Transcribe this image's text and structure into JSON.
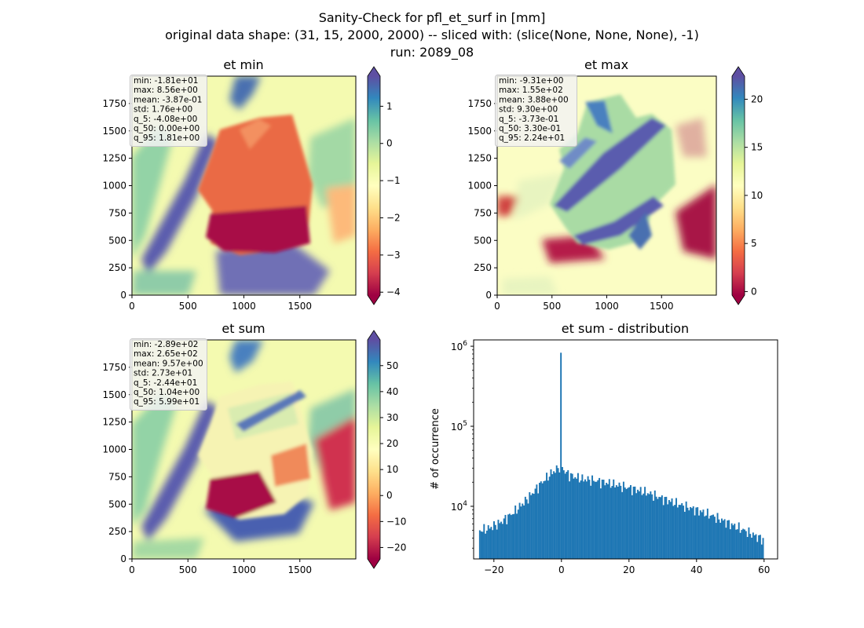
{
  "figure": {
    "title_lines": [
      "Sanity-Check for pfl_et_surf in [mm]",
      "original data shape: (31, 15, 2000, 2000) -- sliced with: (slice(None, None, None), -1)",
      "run: 2089_08"
    ]
  },
  "chart_data": [
    {
      "type": "heatmap",
      "title": "et min",
      "xticks": [
        0,
        500,
        1000,
        1500
      ],
      "yticks": [
        0,
        250,
        500,
        750,
        1000,
        1250,
        1500,
        1750
      ],
      "xlim": [
        0,
        2000
      ],
      "ylim": [
        0,
        2000
      ],
      "colormap": "Spectral",
      "color_range": [
        -4.08,
        1.81
      ],
      "colorbar_ticks": [
        "1",
        "0",
        "−1",
        "−2",
        "−3",
        "−4"
      ],
      "colorbar_tick_values": [
        1,
        0,
        -1,
        -2,
        -3,
        -4
      ],
      "stats": [
        "min: -1.81e+01",
        "max: 8.56e+00",
        "mean: -3.87e-01",
        "std: 1.76e+00",
        "q_5: -4.08e+00",
        "q_50: 0.00e+00",
        "q_95: 1.81e+00"
      ]
    },
    {
      "type": "heatmap",
      "title": "et max",
      "xticks": [
        0,
        500,
        1000,
        1500
      ],
      "yticks": [
        0,
        250,
        500,
        750,
        1000,
        1250,
        1500,
        1750
      ],
      "xlim": [
        0,
        2000
      ],
      "ylim": [
        0,
        2000
      ],
      "colormap": "Spectral",
      "color_range": [
        -0.373,
        22.4
      ],
      "colorbar_ticks": [
        "20",
        "15",
        "10",
        "5",
        "0"
      ],
      "colorbar_tick_values": [
        20,
        15,
        10,
        5,
        0
      ],
      "stats": [
        "min: -9.31e+00",
        "max: 1.55e+02",
        "mean: 3.88e+00",
        "std: 9.30e+00",
        "q_5: -3.73e-01",
        "q_50: 3.30e-01",
        "q_95: 2.24e+01"
      ]
    },
    {
      "type": "heatmap",
      "title": "et sum",
      "xticks": [
        0,
        500,
        1000,
        1500
      ],
      "yticks": [
        0,
        250,
        500,
        750,
        1000,
        1250,
        1500,
        1750
      ],
      "xlim": [
        0,
        2000
      ],
      "ylim": [
        0,
        2000
      ],
      "colormap": "Spectral",
      "color_range": [
        -24.4,
        59.9
      ],
      "colorbar_ticks": [
        "50",
        "40",
        "30",
        "20",
        "10",
        "0",
        "−10",
        "−20"
      ],
      "colorbar_tick_values": [
        50,
        40,
        30,
        20,
        10,
        0,
        -10,
        -20
      ],
      "stats": [
        "min: -2.89e+02",
        "max: 2.65e+02",
        "mean: 9.57e+00",
        "std: 2.73e+01",
        "q_5: -2.44e+01",
        "q_50: 1.04e+00",
        "q_95: 5.99e+01"
      ]
    },
    {
      "type": "bar",
      "title": "et sum - distribution",
      "ylabel": "# of occurrence",
      "yscale": "log",
      "xlim": [
        -26,
        64
      ],
      "ylim": [
        2200,
        1200000
      ],
      "xticks": [
        -20,
        0,
        20,
        40,
        60
      ],
      "xtick_labels": [
        "−20",
        "0",
        "20",
        "40",
        "60"
      ],
      "ytick_values": [
        10000,
        100000,
        1000000
      ],
      "ytick_bases": [
        "10",
        "10",
        "10"
      ],
      "ytick_exps": [
        "4",
        "5",
        "6"
      ],
      "bar_color": "#1f77b4",
      "bin_range": [
        -24.4,
        59.9
      ],
      "bin_count": 200,
      "profile_x": [
        -24.4,
        -22,
        -18,
        -14,
        -10,
        -6,
        -3,
        -1,
        0,
        1,
        3,
        6,
        10,
        15,
        20,
        25,
        30,
        35,
        40,
        45,
        50,
        55,
        59.9
      ],
      "profile_y": [
        5000,
        5200,
        6300,
        8500,
        12500,
        19500,
        26000,
        30000,
        33000,
        27000,
        24000,
        22000,
        21000,
        19000,
        17000,
        15000,
        12500,
        10500,
        9000,
        7500,
        6000,
        4800,
        3800
      ],
      "spike": {
        "x": 0,
        "y": 830000
      }
    }
  ]
}
